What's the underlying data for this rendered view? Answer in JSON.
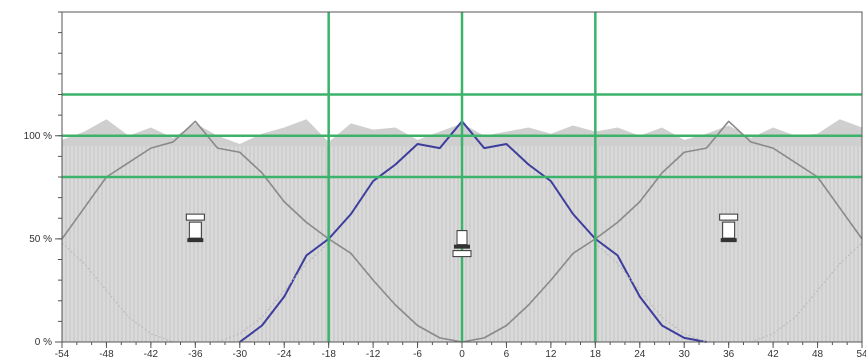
{
  "chart_data": {
    "type": "area",
    "title": "",
    "xlabel": "",
    "ylabel": "",
    "xlim": [
      -54,
      54
    ],
    "ylim": [
      0,
      160
    ],
    "x_ticks": [
      -54,
      -48,
      -42,
      -36,
      -30,
      -24,
      -18,
      -12,
      -6,
      0,
      6,
      12,
      18,
      24,
      30,
      36,
      42,
      48,
      54
    ],
    "y_ticks": [
      {
        "value": 0,
        "label": "0 %"
      },
      {
        "value": 50,
        "label": "50 %"
      },
      {
        "value": 100,
        "label": "100 %"
      }
    ],
    "grid": false,
    "reference_lines": {
      "horizontal": [
        80,
        100,
        120
      ],
      "vertical": [
        -18,
        0,
        18
      ],
      "color": "#3cb36a"
    },
    "series": [
      {
        "kind": "filled_area",
        "color": "#cfcfcf",
        "x": [
          -54,
          -51,
          -48,
          -45,
          -42,
          -39,
          -36,
          -33,
          -30,
          -27,
          -24,
          -21,
          -18,
          -15,
          -12,
          -9,
          -6,
          -3,
          0,
          3,
          6,
          9,
          12,
          15,
          18,
          21,
          24,
          27,
          30,
          33,
          36,
          39,
          42,
          45,
          48,
          51,
          54
        ],
        "values": [
          98,
          102,
          108,
          100,
          104,
          99,
          106,
          100,
          96,
          101,
          104,
          108,
          97,
          106,
          103,
          104,
          98,
          102,
          106,
          100,
          102,
          104,
          101,
          105,
          102,
          104,
          100,
          104,
          98,
          101,
          105,
          99,
          104,
          100,
          101,
          108,
          104
        ]
      },
      {
        "kind": "line",
        "color": "#8a8a8a",
        "x": [
          -54,
          -51,
          -48,
          -45,
          -42,
          -39,
          -36,
          -33,
          -30,
          -27,
          -24,
          -21,
          -18,
          -15,
          -12,
          -9,
          -6,
          -3,
          0,
          3,
          6,
          9,
          12,
          15,
          18,
          21,
          24,
          27,
          30,
          33,
          36,
          39,
          42,
          45,
          48,
          51,
          54
        ],
        "values": [
          50,
          65,
          80,
          87,
          94,
          97,
          107,
          94,
          92,
          82,
          68,
          58,
          50,
          43,
          30,
          18,
          8,
          2,
          0,
          2,
          8,
          18,
          30,
          43,
          50,
          58,
          68,
          82,
          92,
          94,
          107,
          97,
          94,
          87,
          80,
          65,
          50
        ]
      },
      {
        "kind": "line",
        "color": "#3d3d9e",
        "x": [
          -30,
          -27,
          -24,
          -21,
          -18,
          -15,
          -12,
          -9,
          -6,
          -3,
          0,
          3,
          6,
          9,
          12,
          15,
          18,
          21,
          24,
          27,
          30,
          33
        ],
        "values": [
          0,
          8,
          22,
          42,
          50,
          62,
          78,
          86,
          96,
          94,
          107,
          94,
          96,
          86,
          78,
          62,
          50,
          42,
          22,
          8,
          2,
          0
        ]
      },
      {
        "kind": "dashed_curve",
        "color": "#b9b9b9",
        "x": [
          -54,
          -51,
          -48,
          -45,
          -42,
          -39,
          -36,
          -33,
          -30,
          -27,
          -24,
          -21,
          -18
        ],
        "values": [
          48,
          38,
          25,
          12,
          4,
          0,
          0,
          0,
          4,
          12,
          25,
          38,
          48
        ]
      },
      {
        "kind": "dashed_curve",
        "color": "#b9b9b9",
        "x": [
          18,
          21,
          24,
          27,
          30,
          33,
          36,
          39,
          42,
          45,
          48,
          51,
          54
        ],
        "values": [
          48,
          38,
          25,
          12,
          4,
          0,
          0,
          0,
          4,
          12,
          25,
          38,
          48
        ]
      }
    ],
    "markers": [
      {
        "kind": "station-icon-top",
        "x": -36
      },
      {
        "kind": "station-icon-bottom",
        "x": 0
      },
      {
        "kind": "station-icon-top",
        "x": 36
      }
    ]
  }
}
